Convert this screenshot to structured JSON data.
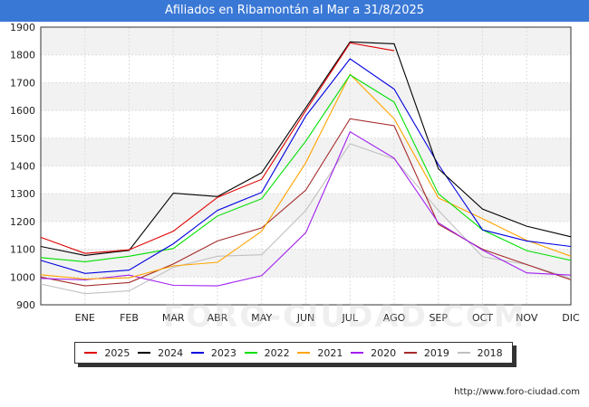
{
  "title": "Afiliados en Ribamontán al Mar a 31/8/2025",
  "source": "http://www.foro-ciudad.com",
  "watermark": "FORO-CIUDAD.COM",
  "chart_data": {
    "type": "line",
    "title": "Afiliados en Ribamontán al Mar a 31/8/2025",
    "x_labels": [
      "",
      "ENE",
      "FEB",
      "MAR",
      "ABR",
      "MAY",
      "JUN",
      "JUL",
      "AGO",
      "SEP",
      "OCT",
      "NOV",
      "DIC"
    ],
    "ylim": [
      900,
      1900
    ],
    "yticks": [
      900,
      1000,
      1100,
      1200,
      1300,
      1400,
      1500,
      1600,
      1700,
      1800,
      1900
    ],
    "grid": true,
    "legend_position": "bottom",
    "series": [
      {
        "name": "2025",
        "color": "#e00000",
        "values": [
          1143,
          1085,
          1098,
          1165,
          1287,
          1352,
          1600,
          1843,
          1815
        ]
      },
      {
        "name": "2024",
        "color": "#000000",
        "values": [
          1110,
          1078,
          1096,
          1302,
          1290,
          1376,
          1610,
          1847,
          1840,
          1390,
          1245,
          1183,
          1145
        ]
      },
      {
        "name": "2023",
        "color": "#0000e0",
        "values": [
          1060,
          1013,
          1025,
          1120,
          1240,
          1305,
          1580,
          1786,
          1677,
          1405,
          1170,
          1130,
          1110
        ]
      },
      {
        "name": "2022",
        "color": "#00e000",
        "values": [
          1070,
          1055,
          1075,
          1103,
          1220,
          1282,
          1490,
          1728,
          1630,
          1300,
          1170,
          1095,
          1060
        ]
      },
      {
        "name": "2021",
        "color": "#ffa500",
        "values": [
          1008,
          993,
          997,
          1040,
          1053,
          1165,
          1412,
          1730,
          1570,
          1285,
          1210,
          1132,
          1075
        ]
      },
      {
        "name": "2020",
        "color": "#a020f0",
        "values": [
          995,
          990,
          1007,
          970,
          968,
          1005,
          1160,
          1523,
          1428,
          1195,
          1097,
          1015,
          1007
        ]
      },
      {
        "name": "2019",
        "color": "#a52a2a",
        "values": [
          1000,
          968,
          980,
          1047,
          1130,
          1177,
          1313,
          1570,
          1545,
          1190,
          1100,
          1045,
          990
        ]
      },
      {
        "name": "2018",
        "color": "#c0c0c0",
        "values": [
          975,
          940,
          950,
          1035,
          1075,
          1080,
          1240,
          1480,
          1425,
          1240,
          1073,
          1045,
          995
        ]
      }
    ]
  }
}
